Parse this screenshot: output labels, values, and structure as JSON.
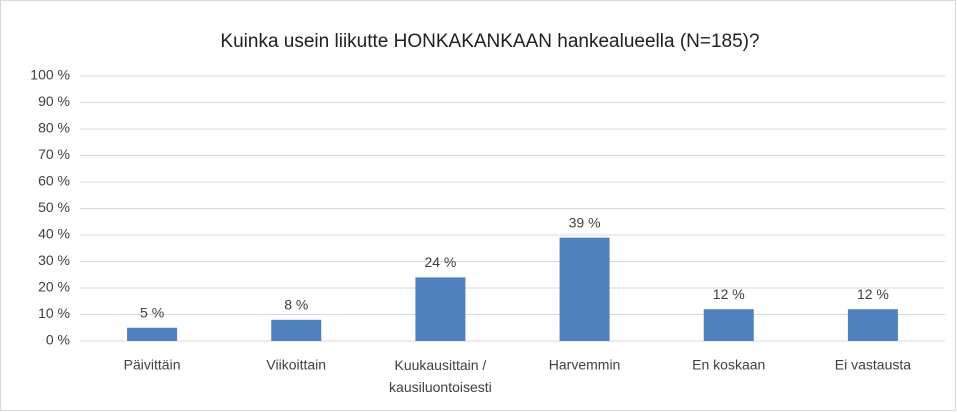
{
  "chart_data": {
    "type": "bar",
    "title": "Kuinka usein liikutte HONKAKANKAAN hankealueella (N=185)?",
    "categories": [
      "Päivittäin",
      "Viikoittain",
      "Kuukausittain / kausiluontoisesti",
      "Harvemmin",
      "En koskaan",
      "Ei vastausta"
    ],
    "values": [
      5,
      8,
      24,
      39,
      12,
      12
    ],
    "value_labels": [
      "5 %",
      "8 %",
      "24 %",
      "39 %",
      "12 %",
      "12 %"
    ],
    "color": "#4f81bd",
    "ylim": [
      0,
      100
    ],
    "yticks": [
      {
        "value": 0,
        "label": "0 %"
      },
      {
        "value": 10,
        "label": "10 %"
      },
      {
        "value": 20,
        "label": "20 %"
      },
      {
        "value": 30,
        "label": "30 %"
      },
      {
        "value": 40,
        "label": "40 %"
      },
      {
        "value": 50,
        "label": "50 %"
      },
      {
        "value": 60,
        "label": "60 %"
      },
      {
        "value": 70,
        "label": "70 %"
      },
      {
        "value": 80,
        "label": "80 %"
      },
      {
        "value": 90,
        "label": "90 %"
      },
      {
        "value": 100,
        "label": "100 %"
      }
    ],
    "grid": true
  }
}
